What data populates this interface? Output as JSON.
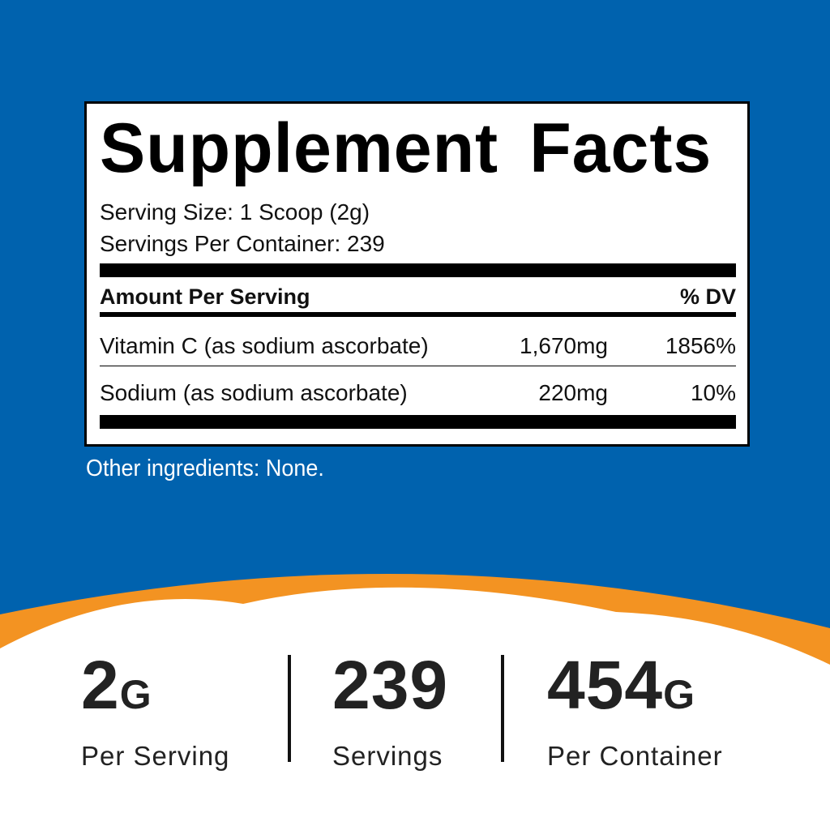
{
  "colors": {
    "blue": "#0062AE",
    "orange": "#F39322"
  },
  "label": {
    "title": "Supplement Facts",
    "serving_size": "Serving Size: 1 Scoop (2g)",
    "servings_per_container": "Servings Per Container: 239",
    "header": {
      "amount": "Amount Per Serving",
      "dv": "% DV"
    },
    "rows": [
      {
        "name": "Vitamin C (as sodium ascorbate)",
        "amount": "1,670mg",
        "dv": "1856%"
      },
      {
        "name": "Sodium (as sodium ascorbate)",
        "amount": "220mg",
        "dv": "10%"
      }
    ]
  },
  "other_ingredients": "Other ingredients: None.",
  "stats": [
    {
      "value": "2",
      "unit": "G",
      "label": "Per Serving"
    },
    {
      "value": "239",
      "unit": "",
      "label": "Servings"
    },
    {
      "value": "454",
      "unit": "G",
      "label": "Per Container"
    }
  ]
}
